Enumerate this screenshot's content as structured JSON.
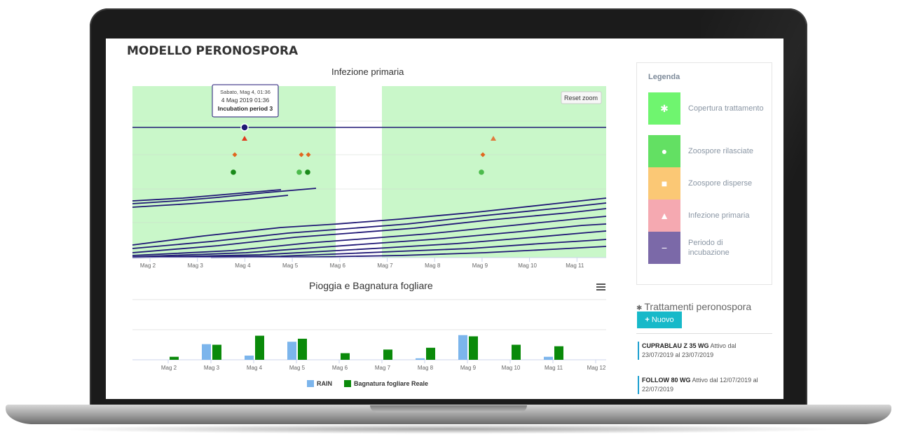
{
  "page": {
    "title": "MODELLO PERONOSPORA"
  },
  "colors": {
    "background_band": "#c9f7c9",
    "line": "#1f1675",
    "rain": "#7cb5ec",
    "wetness": "#0a8a0a",
    "legend_copertura": "#6ff56f",
    "legend_zoospore_rilasciate": "#63e063",
    "legend_zoospore_disperse": "#fbc875",
    "legend_infezione": "#f5a9b1",
    "legend_incubazione": "#7b69a8"
  },
  "chart1": {
    "title": "Infezione primaria",
    "reset_zoom": "Reset zoom",
    "tooltip": {
      "header": "Sabato, Mag 4, 01:36",
      "line1": "4 Mag 2019 01:36",
      "line2": "Incubation period 3"
    },
    "x_ticks": [
      "Mag 2",
      "Mag 3",
      "Mag 4",
      "Mag 5",
      "Mag 6",
      "Mag 7",
      "Mag 8",
      "Mag 9",
      "Mag 10",
      "Mag 11"
    ]
  },
  "chart2": {
    "title": "Pioggia e Bagnatura fogliare",
    "x_ticks": [
      "Mag 2",
      "Mag 3",
      "Mag 4",
      "Mag 5",
      "Mag 6",
      "Mag 7",
      "Mag 8",
      "Mag 9",
      "Mag 10",
      "Mag 11",
      "Mag 12"
    ],
    "legend": {
      "rain": "RAIN",
      "wetness": "Bagnatura fogliare Reale"
    }
  },
  "chart_data": {
    "type": "bar",
    "title": "Pioggia e Bagnatura fogliare",
    "categories": [
      "Mag 2",
      "Mag 3",
      "Mag 4",
      "Mag 5",
      "Mag 6",
      "Mag 7",
      "Mag 8",
      "Mag 9",
      "Mag 10",
      "Mag 11"
    ],
    "series": [
      {
        "name": "RAIN",
        "values": [
          0,
          0.52,
          0.14,
          0.6,
          0,
          0,
          0.05,
          0.82,
          0,
          0.1
        ]
      },
      {
        "name": "Bagnatura fogliare Reale",
        "values": [
          0.1,
          0.5,
          0.8,
          0.7,
          0.22,
          0.34,
          0.4,
          0.78,
          0.5,
          0.45
        ]
      }
    ],
    "ylim": [
      0,
      2
    ],
    "grid": true,
    "legend_position": "bottom"
  },
  "legend": {
    "title": "Legenda",
    "items": [
      {
        "label": "Copertura trattamento",
        "icon": "bug-icon",
        "glyph": "✱"
      },
      {
        "label": "Zoospore rilasciate",
        "icon": "circle-icon",
        "glyph": "●"
      },
      {
        "label": "Zoospore disperse",
        "icon": "square-icon",
        "glyph": "■"
      },
      {
        "label": "Infezione primaria",
        "icon": "warning-icon",
        "glyph": "▲"
      },
      {
        "label": "Periodo di incubazione",
        "icon": "minus-icon",
        "glyph": "−"
      }
    ]
  },
  "treatments": {
    "header": "Trattamenti peronospora",
    "new_button": "Nuovo",
    "items": [
      {
        "name": "CUPRABLAU Z 35 WG",
        "text": "Attivo dal 23/07/2019 al 23/07/2019"
      },
      {
        "name": "FOLLOW 80 WG",
        "text": "Attivo dal 12/07/2019 al 22/07/2019"
      }
    ]
  }
}
